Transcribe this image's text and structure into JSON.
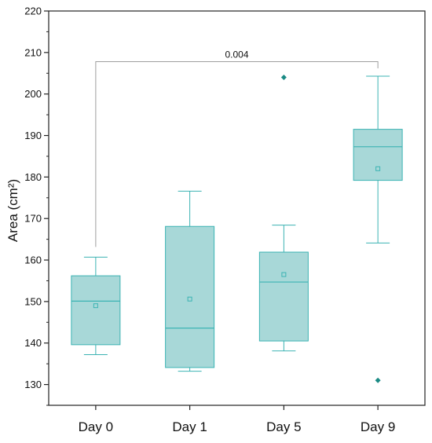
{
  "chart_data": {
    "type": "box",
    "title": "",
    "xlabel": "",
    "ylabel": "Area (cm²)",
    "ylim": [
      125,
      220
    ],
    "yticks": [
      "130",
      "140",
      "150",
      "160",
      "170",
      "180",
      "190",
      "200",
      "210",
      "220"
    ],
    "categories": [
      "Day 0",
      "Day 1",
      "Day 5",
      "Day 9"
    ],
    "boxes": [
      {
        "whisker_low": 137.2,
        "q1": 139.6,
        "median": 150.1,
        "q3": 156.2,
        "whisker_high": 160.7,
        "mean": 149.0,
        "outliers": []
      },
      {
        "whisker_low": 133.2,
        "q1": 134.1,
        "median": 143.6,
        "q3": 168.1,
        "whisker_high": 176.6,
        "mean": 150.6,
        "outliers": []
      },
      {
        "whisker_low": 138.1,
        "q1": 140.5,
        "median": 154.7,
        "q3": 161.9,
        "whisker_high": 168.4,
        "mean": 156.5,
        "outliers": [
          204.0
        ]
      },
      {
        "whisker_low": 164.1,
        "q1": 179.2,
        "median": 187.3,
        "q3": 191.5,
        "whisker_high": 204.3,
        "mean": 182.0,
        "outliers": [
          131.0
        ]
      }
    ],
    "annotation": {
      "from": "Day 0",
      "to": "Day 9",
      "text": "0.004"
    },
    "colors": {
      "box_fill": "#a8d8d8",
      "box_stroke": "#3bb3b3",
      "outlier": "#1a8a84",
      "bracket": "#9e9e9e"
    },
    "grid": false,
    "legend": "none"
  }
}
